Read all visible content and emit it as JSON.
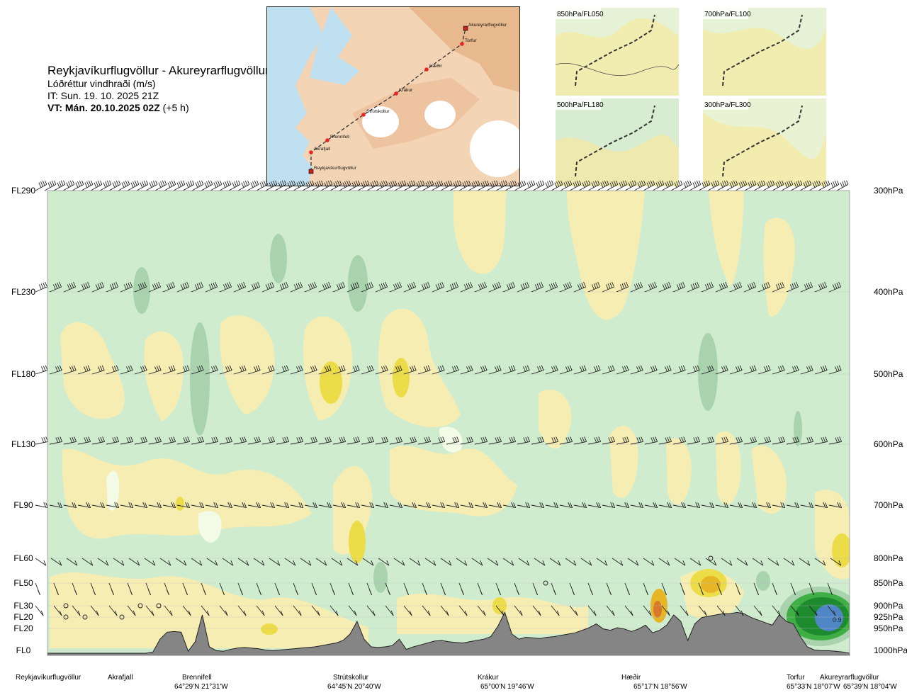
{
  "header": {
    "route": "Reykjavíkurflugvöllur - Akureyrarflugvöllur",
    "variable": "Lóðréttur vindhraði (m/s)",
    "initial_time": "IT: Sun. 19. 10. 2025 21Z",
    "valid_time_bold": "VT: Mán. 20.10.2025 02Z",
    "valid_time_offset": "(+5 h)"
  },
  "map": {
    "stations": [
      "Akureyrarflugvöllur",
      "Torfur",
      "Hæðir",
      "Krákur",
      "Strútskollur",
      "Brennifell",
      "Akrafjall",
      "Reykjavíkurflugvöllur"
    ]
  },
  "thumbnails": [
    {
      "label": "850hPa/FL050"
    },
    {
      "label": "700hPa/FL100"
    },
    {
      "label": "500hPa/FL180"
    },
    {
      "label": "300hPa/FL300"
    }
  ],
  "colors": {
    "strong_down": "#1d8a2e",
    "moderate_down": "#3fae44",
    "weak_down": "#a9d3ad",
    "slight_down": "#cfeccf",
    "neutral": "#f3fbe6",
    "slight_up": "#f6edb3",
    "weak_up": "#ecdc48",
    "moderate_up": "#e6b625",
    "strong_up": "#d8782a",
    "core": "#4f87c6",
    "terrain": "#858585"
  },
  "chart_data": {
    "type": "heatmap",
    "variable": "Lóðréttur vindhraði (m/s)",
    "flight_levels": [
      "FL290",
      "FL230",
      "FL180",
      "FL130",
      "FL90",
      "FL60",
      "FL50",
      "FL30",
      "FL20",
      "FL20",
      "FL0"
    ],
    "pressure_levels": [
      "300hPa",
      "400hPa",
      "500hPa",
      "600hPa",
      "700hPa",
      "800hPa",
      "850hPa",
      "900hPa",
      "925hPa",
      "950hPa",
      "1000hPa"
    ],
    "waypoints": [
      {
        "name": "Reykjavíkurflugvöllur",
        "coord": ""
      },
      {
        "name": "Akrafjall",
        "coord": ""
      },
      {
        "name": "Brennifell",
        "coord": "64°29'N 21°31'W"
      },
      {
        "name": "Strútskollur",
        "coord": "64°45'N 20°40'W"
      },
      {
        "name": "Krákur",
        "coord": "65°00'N 19°46'W"
      },
      {
        "name": "Hæðir",
        "coord": "65°17'N 18°56'W"
      },
      {
        "name": "Torfur",
        "coord": "65°33'N 18°07'W"
      },
      {
        "name": "Akureyrarflugvöllur",
        "coord": "65°39'N 18°04'W"
      }
    ],
    "annotations": [
      "0.9"
    ],
    "terrain_profile": [
      0,
      0,
      0,
      0,
      0,
      0,
      0,
      0,
      0,
      0,
      0,
      0,
      0,
      0,
      0,
      2,
      22,
      33,
      34,
      33,
      3,
      18,
      60,
      10,
      4,
      3,
      6,
      8,
      9,
      8,
      7,
      5,
      4,
      5,
      6,
      7,
      8,
      9,
      10,
      12,
      14,
      16,
      20,
      30,
      50,
      22,
      10,
      9,
      10,
      12,
      22,
      6,
      10,
      13,
      16,
      19,
      20,
      18,
      17,
      16,
      18,
      20,
      22,
      26,
      42,
      64,
      30,
      22,
      25,
      24,
      23,
      25,
      26,
      28,
      30,
      32,
      36,
      40,
      46,
      38,
      36,
      40,
      38,
      34,
      38,
      44,
      32,
      36,
      44,
      60,
      50,
      20,
      46,
      56,
      58,
      60,
      62,
      62,
      64,
      62,
      56,
      52,
      48,
      44,
      60,
      50,
      46,
      26,
      10,
      5,
      4,
      4,
      3,
      2,
      0
    ]
  }
}
